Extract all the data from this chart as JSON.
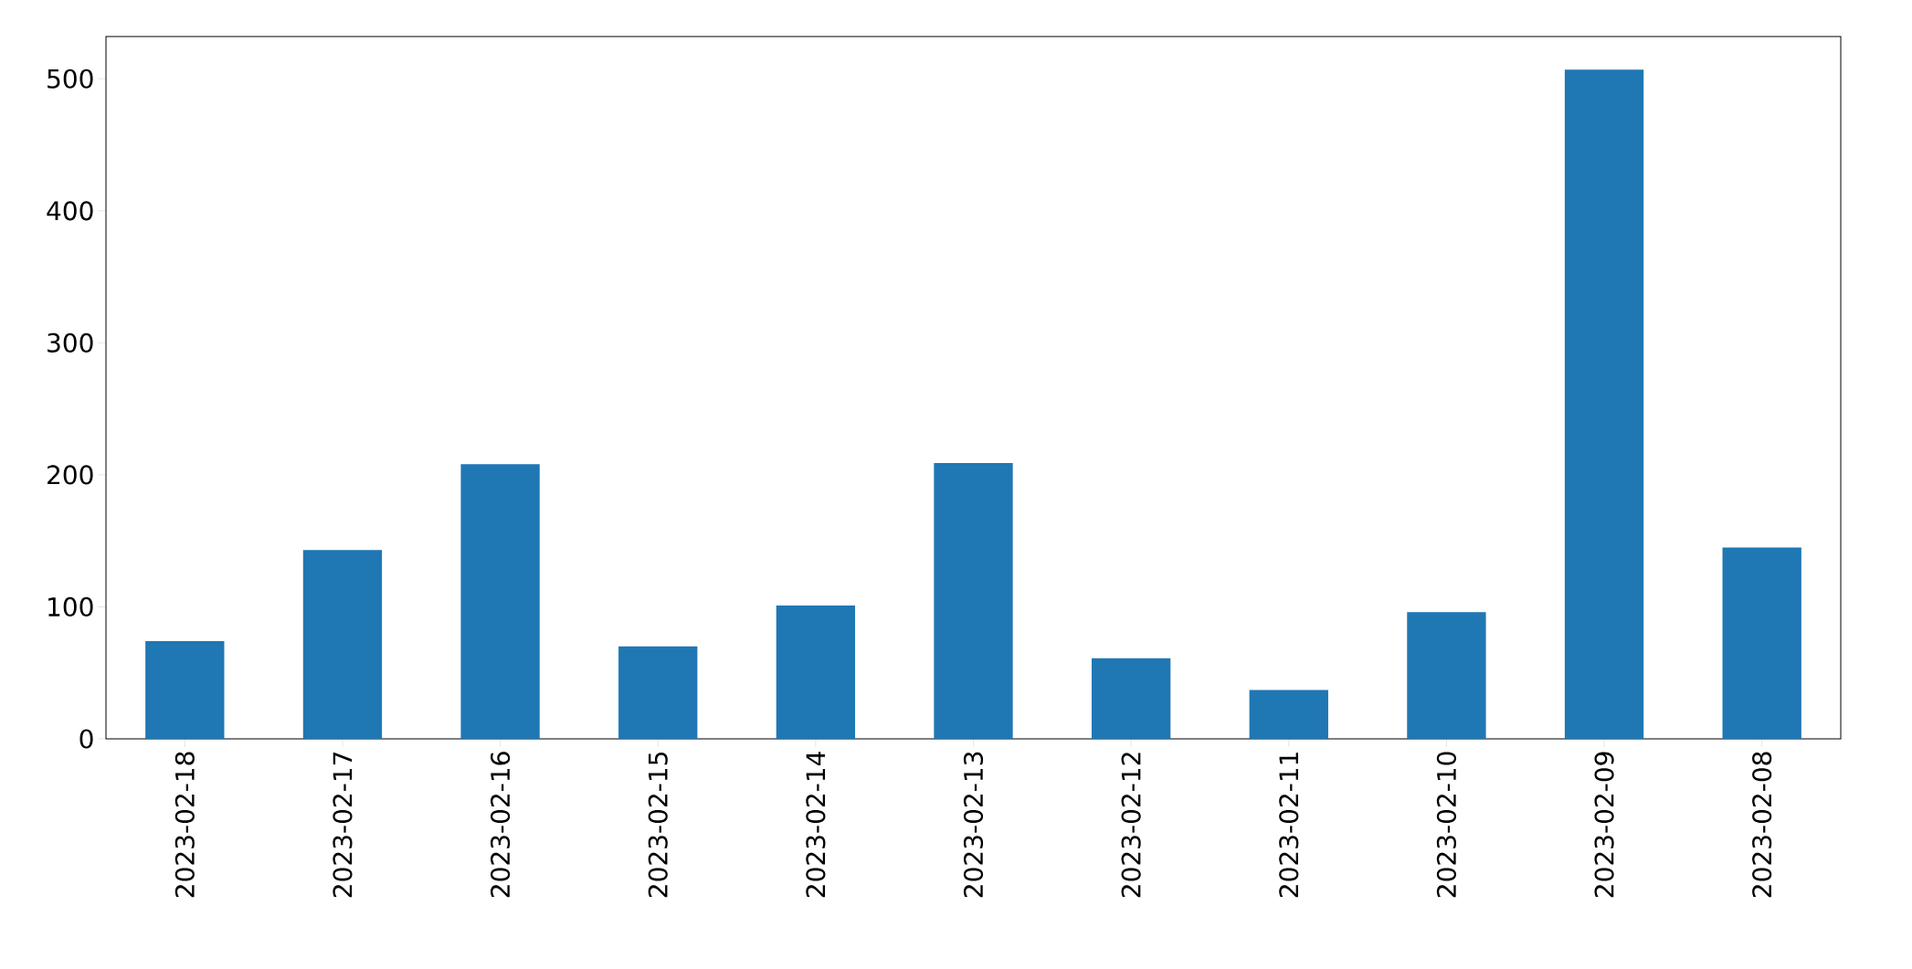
{
  "chart_data": {
    "type": "bar",
    "categories": [
      "2023-02-18",
      "2023-02-17",
      "2023-02-16",
      "2023-02-15",
      "2023-02-14",
      "2023-02-13",
      "2023-02-12",
      "2023-02-11",
      "2023-02-10",
      "2023-02-09",
      "2023-02-08"
    ],
    "values": [
      74,
      143,
      208,
      70,
      101,
      209,
      61,
      37,
      96,
      507,
      145
    ],
    "color": "#1f77b4",
    "ylim": [
      0,
      532
    ],
    "yticks": [
      0,
      100,
      200,
      300,
      400,
      500
    ]
  }
}
